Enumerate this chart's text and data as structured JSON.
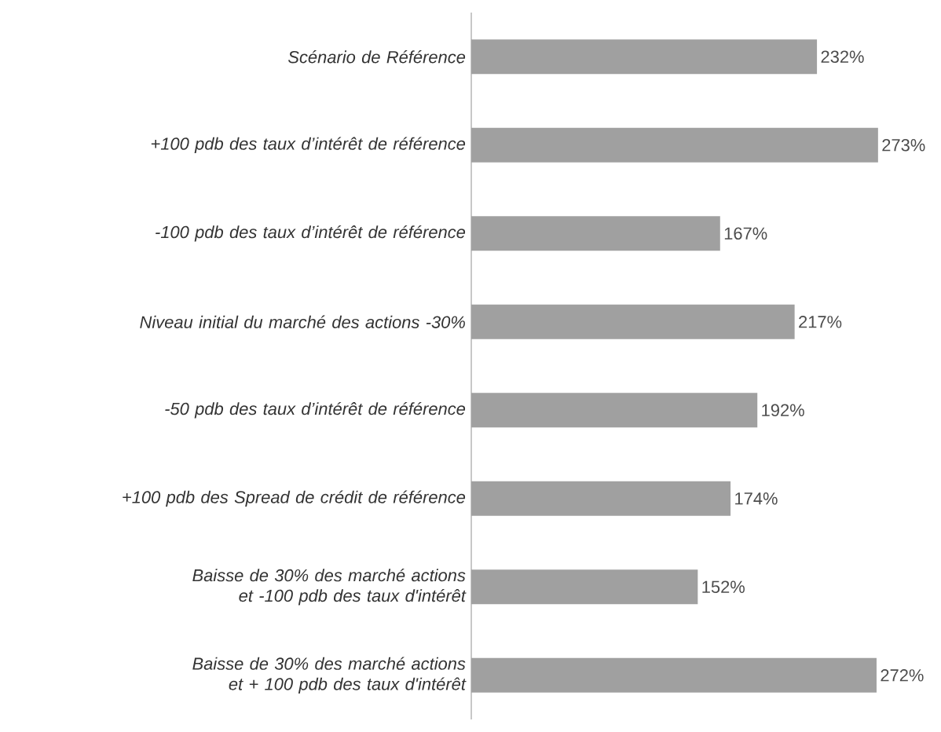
{
  "chart_data": {
    "type": "bar",
    "orientation": "horizontal",
    "categories": [
      "Scénario de Référence",
      "+100 pdb des taux d’intérêt de référence",
      "-100 pdb des taux d’intérêt de référence",
      "Niveau initial du marché des actions -30%",
      "-50 pdb des taux d’intérêt de référence",
      "+100 pdb des Spread de crédit de référence",
      "Baisse de 30% des marché actions et -100 pdb des taux d'intérêt",
      "Baisse de 30% des marché actions et + 100 pdb des taux d'intérêt"
    ],
    "values": [
      232,
      273,
      167,
      217,
      192,
      174,
      152,
      272
    ],
    "value_labels": [
      "232%",
      "273%",
      "167%",
      "217%",
      "192%",
      "174%",
      "152%",
      "272%"
    ],
    "color": "#a0a0a0"
  }
}
